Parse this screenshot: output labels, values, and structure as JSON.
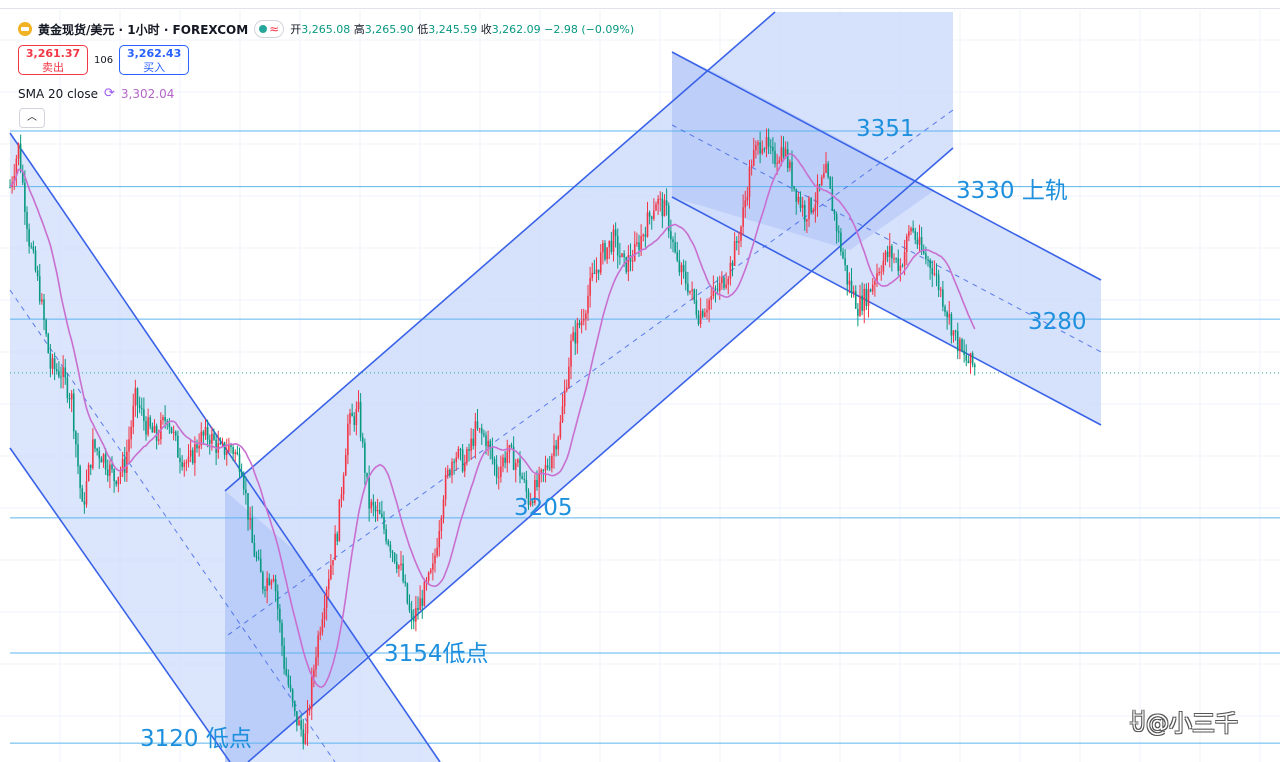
{
  "header": {
    "title": "黄金现货/美元 · 1小时 · FOREXCOM",
    "open_label": "开",
    "open": "3,265.08",
    "high_label": "高",
    "high": "3,265.90",
    "low_label": "低",
    "low": "3,245.59",
    "close_label": "收",
    "close": "3,262.09",
    "change": "−2.98 (−0.09%)"
  },
  "trade": {
    "sell_price": "3,261.37",
    "sell_label": "卖出",
    "spread": "106",
    "buy_price": "3,262.43",
    "buy_label": "买入"
  },
  "indicator": {
    "label": "SMA 20 close",
    "value": "3,302.04"
  },
  "colors": {
    "up": "#f23645",
    "down": "#089981",
    "sma": "#c86fd0",
    "channel_fill": "#cfdcfb",
    "channel_line": "#3a63e8",
    "hline": "#5bb4ee",
    "annotation": "#1e90dd"
  },
  "watermark": "@小三千",
  "chart_data": {
    "type": "candlestick",
    "symbol": "XAUUSD",
    "timeframe": "1h",
    "y_range": [
      3115,
      3375
    ],
    "horizontal_levels": [
      3351,
      3330,
      3280,
      3205,
      3154,
      3120
    ],
    "annotations": [
      {
        "text": "3351",
        "level": 3351
      },
      {
        "text": "3330 上轨",
        "level": 3330
      },
      {
        "text": "3280",
        "level": 3280
      },
      {
        "text": "3205",
        "level": 3205
      },
      {
        "text": "3154低点",
        "level": 3154
      },
      {
        "text": "3120 低点",
        "level": 3120
      }
    ],
    "close_path": [
      [
        0,
        3330
      ],
      [
        4,
        3345
      ],
      [
        9,
        3310
      ],
      [
        14,
        3290
      ],
      [
        19,
        3262
      ],
      [
        24,
        3260
      ],
      [
        29,
        3250
      ],
      [
        34,
        3208
      ],
      [
        39,
        3232
      ],
      [
        44,
        3228
      ],
      [
        49,
        3220
      ],
      [
        54,
        3225
      ],
      [
        59,
        3250
      ],
      [
        64,
        3240
      ],
      [
        69,
        3235
      ],
      [
        74,
        3244
      ],
      [
        79,
        3230
      ],
      [
        84,
        3225
      ],
      [
        89,
        3235
      ],
      [
        94,
        3236
      ],
      [
        99,
        3230
      ],
      [
        104,
        3232
      ],
      [
        109,
        3225
      ],
      [
        114,
        3195
      ],
      [
        119,
        3180
      ],
      [
        124,
        3185
      ],
      [
        129,
        3150
      ],
      [
        134,
        3130
      ],
      [
        139,
        3122
      ],
      [
        144,
        3155
      ],
      [
        149,
        3180
      ],
      [
        154,
        3200
      ],
      [
        159,
        3240
      ],
      [
        164,
        3245
      ],
      [
        169,
        3210
      ],
      [
        174,
        3205
      ],
      [
        179,
        3195
      ],
      [
        184,
        3185
      ],
      [
        189,
        3165
      ],
      [
        194,
        3175
      ],
      [
        199,
        3185
      ],
      [
        204,
        3215
      ],
      [
        209,
        3230
      ],
      [
        214,
        3225
      ],
      [
        219,
        3238
      ],
      [
        224,
        3235
      ],
      [
        229,
        3222
      ],
      [
        234,
        3230
      ],
      [
        239,
        3225
      ],
      [
        244,
        3212
      ],
      [
        249,
        3218
      ],
      [
        254,
        3227
      ],
      [
        259,
        3240
      ],
      [
        264,
        3270
      ],
      [
        269,
        3280
      ],
      [
        274,
        3295
      ],
      [
        279,
        3305
      ],
      [
        284,
        3310
      ],
      [
        289,
        3300
      ],
      [
        294,
        3305
      ],
      [
        299,
        3315
      ],
      [
        304,
        3325
      ],
      [
        309,
        3320
      ],
      [
        314,
        3300
      ],
      [
        319,
        3293
      ],
      [
        324,
        3282
      ],
      [
        329,
        3287
      ],
      [
        334,
        3292
      ],
      [
        339,
        3300
      ],
      [
        344,
        3315
      ],
      [
        349,
        3340
      ],
      [
        354,
        3348
      ],
      [
        359,
        3340
      ],
      [
        364,
        3345
      ],
      [
        369,
        3330
      ],
      [
        374,
        3320
      ],
      [
        379,
        3325
      ],
      [
        384,
        3335
      ],
      [
        389,
        3315
      ],
      [
        394,
        3295
      ],
      [
        399,
        3285
      ],
      [
        404,
        3290
      ],
      [
        409,
        3300
      ],
      [
        414,
        3305
      ],
      [
        419,
        3300
      ],
      [
        424,
        3315
      ],
      [
        429,
        3305
      ],
      [
        434,
        3300
      ],
      [
        439,
        3288
      ],
      [
        444,
        3275
      ],
      [
        449,
        3265
      ],
      [
        454,
        3262
      ]
    ],
    "sma20_label": "SMA 20 close"
  }
}
